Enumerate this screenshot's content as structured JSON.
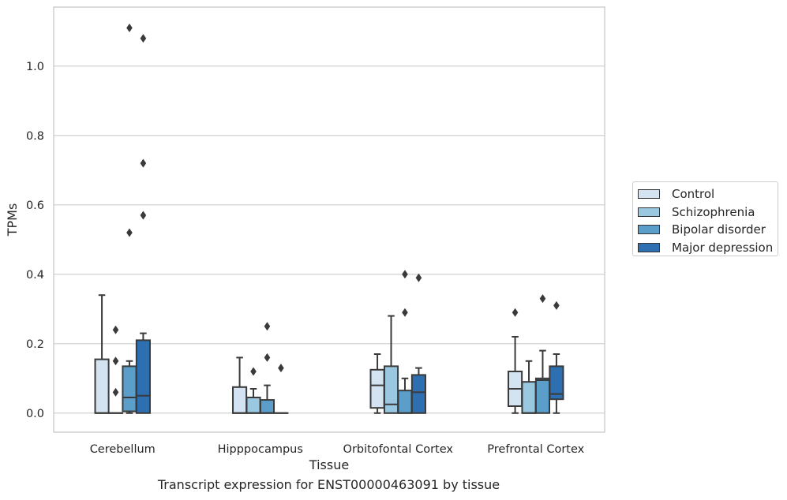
{
  "chart_data": {
    "type": "box",
    "xlabel": "Tissue",
    "ylabel": "TPMs",
    "caption": "Transcript expression for ENST00000463091 by tissue",
    "ylim": [
      -0.055,
      1.17
    ],
    "yticks": [
      "0.0",
      "0.2",
      "0.4",
      "0.6",
      "0.8",
      "1.0"
    ],
    "grid": "horizontal",
    "legend_position": "right",
    "categories": [
      "Cerebellum",
      "Hipppocampus",
      "Orbitofontal Cortex",
      "Prefrontal Cortex"
    ],
    "series": [
      {
        "name": "Control",
        "color": "#d3e3f2",
        "boxes": [
          {
            "q1": 0.0,
            "median": 0.0,
            "q3": 0.155,
            "whisker_low": 0.0,
            "whisker_high": 0.34,
            "outliers": []
          },
          {
            "q1": 0.0,
            "median": 0.0,
            "q3": 0.075,
            "whisker_low": 0.0,
            "whisker_high": 0.16,
            "outliers": []
          },
          {
            "q1": 0.015,
            "median": 0.08,
            "q3": 0.125,
            "whisker_low": 0.0,
            "whisker_high": 0.17,
            "outliers": []
          },
          {
            "q1": 0.02,
            "median": 0.07,
            "q3": 0.12,
            "whisker_low": 0.0,
            "whisker_high": 0.22,
            "outliers": [
              0.29
            ]
          }
        ]
      },
      {
        "name": "Schizophrenia",
        "color": "#9ac8e0",
        "boxes": [
          {
            "q1": 0.0,
            "median": 0.0,
            "q3": 0.0,
            "whisker_low": 0.0,
            "whisker_high": 0.0,
            "outliers": [
              0.06,
              0.15,
              0.24
            ]
          },
          {
            "q1": 0.0,
            "median": 0.0,
            "q3": 0.045,
            "whisker_low": 0.0,
            "whisker_high": 0.07,
            "outliers": [
              0.12
            ]
          },
          {
            "q1": 0.0,
            "median": 0.025,
            "q3": 0.135,
            "whisker_low": 0.0,
            "whisker_high": 0.28,
            "outliers": []
          },
          {
            "q1": 0.0,
            "median": 0.0,
            "q3": 0.09,
            "whisker_low": 0.0,
            "whisker_high": 0.15,
            "outliers": []
          }
        ]
      },
      {
        "name": "Bipolar disorder",
        "color": "#5a9ec9",
        "boxes": [
          {
            "q1": 0.005,
            "median": 0.045,
            "q3": 0.135,
            "whisker_low": 0.0,
            "whisker_high": 0.15,
            "outliers": [
              0.52,
              1.11
            ]
          },
          {
            "q1": 0.0,
            "median": 0.0,
            "q3": 0.038,
            "whisker_low": 0.0,
            "whisker_high": 0.08,
            "outliers": [
              0.16,
              0.25
            ]
          },
          {
            "q1": 0.0,
            "median": 0.0,
            "q3": 0.065,
            "whisker_low": 0.0,
            "whisker_high": 0.1,
            "outliers": [
              0.29,
              0.4
            ]
          },
          {
            "q1": 0.0,
            "median": 0.095,
            "q3": 0.1,
            "whisker_low": 0.0,
            "whisker_high": 0.18,
            "outliers": [
              0.33
            ]
          }
        ]
      },
      {
        "name": "Major depression",
        "color": "#2d6fb0",
        "boxes": [
          {
            "q1": 0.0,
            "median": 0.05,
            "q3": 0.21,
            "whisker_low": 0.0,
            "whisker_high": 0.23,
            "outliers": [
              0.57,
              0.72,
              1.08
            ]
          },
          {
            "q1": 0.0,
            "median": 0.0,
            "q3": 0.0,
            "whisker_low": 0.0,
            "whisker_high": 0.0,
            "outliers": [
              0.13
            ]
          },
          {
            "q1": 0.0,
            "median": 0.06,
            "q3": 0.11,
            "whisker_low": 0.0,
            "whisker_high": 0.13,
            "outliers": [
              0.39
            ]
          },
          {
            "q1": 0.04,
            "median": 0.055,
            "q3": 0.135,
            "whisker_low": 0.0,
            "whisker_high": 0.17,
            "outliers": [
              0.31
            ]
          }
        ]
      }
    ]
  }
}
